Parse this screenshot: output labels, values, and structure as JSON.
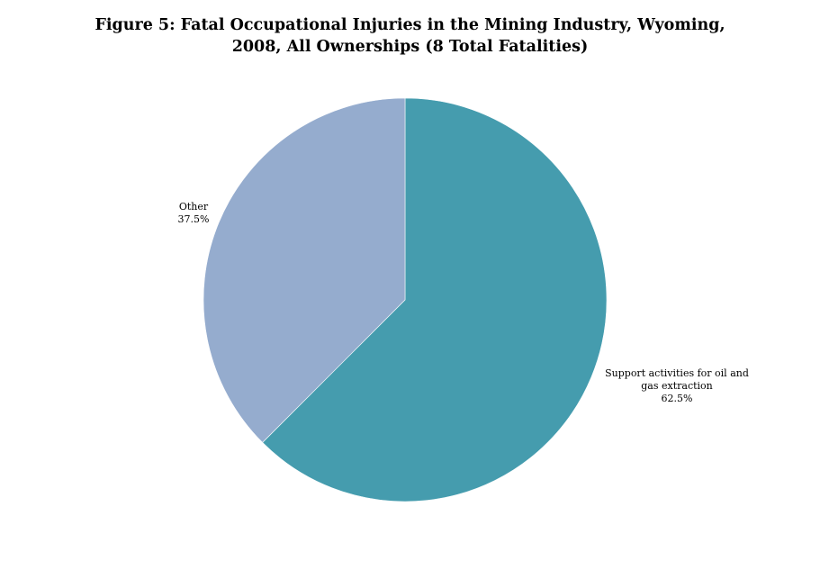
{
  "chart_data": {
    "type": "pie",
    "title_lines": [
      "Figure 5: Fatal Occupational Injuries in the Mining Industry, Wyoming,",
      "2008, All Ownerships (8 Total Fatalities)"
    ],
    "slices": [
      {
        "name": "Support activities for oil and gas extraction",
        "label_lines": [
          "Support activities for oil and",
          "gas extraction"
        ],
        "percent_label": "62.5%",
        "value": 62.5,
        "color": "#459cae"
      },
      {
        "name": "Other",
        "label_lines": [
          "Other"
        ],
        "percent_label": "37.5%",
        "value": 37.5,
        "color": "#95acce"
      }
    ]
  }
}
